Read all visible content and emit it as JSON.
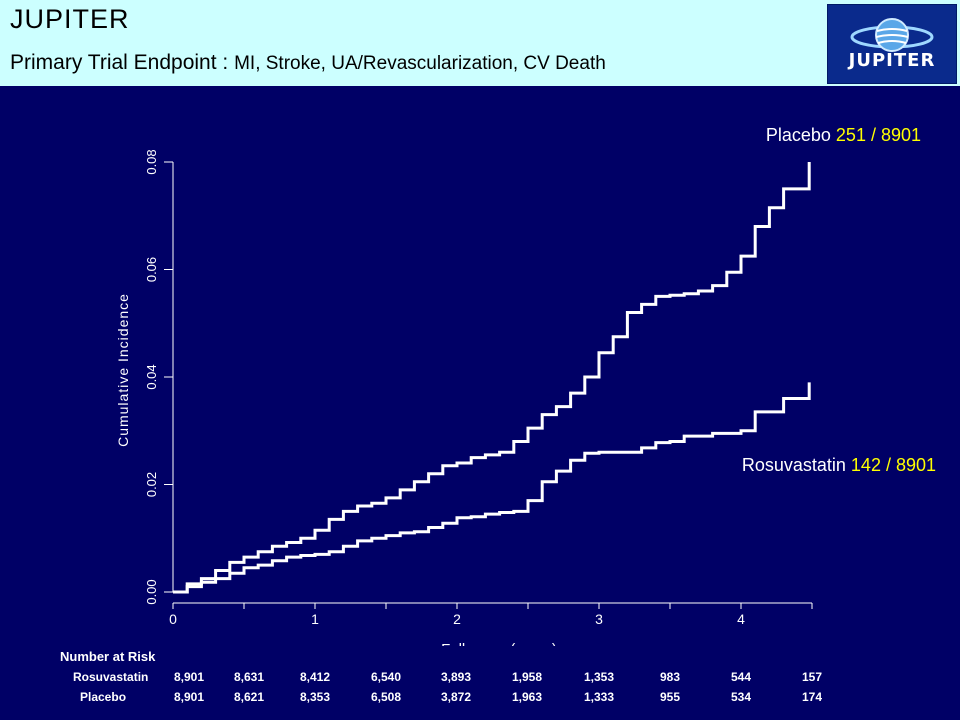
{
  "header": {
    "title": "JUPITER",
    "subtitle_prefix": "Primary Trial Endpoint : ",
    "subtitle_rest": "MI, Stroke, UA/Revascularization, CV Death",
    "logo_text": "JUPITER"
  },
  "colors": {
    "background": "#000066",
    "header_band": "#ccffff",
    "line": "#ffffff",
    "count_highlight": "#ffff00"
  },
  "chart_data": {
    "type": "line",
    "xlabel": "Follow-up (years)",
    "ylabel": "Cumulative Incidence",
    "xlim": [
      0,
      4.5
    ],
    "ylim": [
      0,
      0.08
    ],
    "xticks": [
      "0",
      "1",
      "2",
      "3",
      "4"
    ],
    "yticks": [
      "0.00",
      "0.02",
      "0.04",
      "0.06",
      "0.08"
    ],
    "grid": false,
    "series": [
      {
        "name": "Placebo",
        "count": "251 / 8901",
        "x": [
          0,
          0.1,
          0.2,
          0.3,
          0.4,
          0.5,
          0.6,
          0.7,
          0.8,
          0.9,
          1.0,
          1.1,
          1.2,
          1.3,
          1.4,
          1.5,
          1.6,
          1.7,
          1.8,
          1.9,
          2.0,
          2.1,
          2.2,
          2.3,
          2.4,
          2.5,
          2.6,
          2.7,
          2.8,
          2.9,
          3.0,
          3.1,
          3.2,
          3.3,
          3.4,
          3.5,
          3.6,
          3.7,
          3.8,
          3.9,
          4.0,
          4.1,
          4.2,
          4.3,
          4.4,
          4.48
        ],
        "y": [
          0,
          0.0015,
          0.0025,
          0.004,
          0.0055,
          0.0065,
          0.0075,
          0.0085,
          0.0092,
          0.01,
          0.0115,
          0.0135,
          0.015,
          0.016,
          0.0165,
          0.0175,
          0.019,
          0.0205,
          0.022,
          0.0235,
          0.024,
          0.025,
          0.0255,
          0.026,
          0.028,
          0.0305,
          0.033,
          0.0345,
          0.037,
          0.04,
          0.0445,
          0.0475,
          0.052,
          0.0535,
          0.055,
          0.0552,
          0.0555,
          0.056,
          0.057,
          0.0595,
          0.0625,
          0.068,
          0.0715,
          0.075,
          0.075,
          0.08
        ]
      },
      {
        "name": "Rosuvastatin",
        "count": "142 / 8901",
        "x": [
          0,
          0.1,
          0.2,
          0.3,
          0.4,
          0.5,
          0.6,
          0.7,
          0.8,
          0.9,
          1.0,
          1.1,
          1.2,
          1.3,
          1.4,
          1.5,
          1.6,
          1.7,
          1.8,
          1.9,
          2.0,
          2.1,
          2.2,
          2.3,
          2.4,
          2.5,
          2.6,
          2.7,
          2.8,
          2.9,
          3.0,
          3.1,
          3.2,
          3.3,
          3.4,
          3.5,
          3.6,
          3.7,
          3.8,
          3.9,
          4.0,
          4.1,
          4.2,
          4.3,
          4.48
        ],
        "y": [
          0,
          0.001,
          0.0018,
          0.0025,
          0.0035,
          0.0045,
          0.005,
          0.0058,
          0.0065,
          0.0068,
          0.007,
          0.0075,
          0.0085,
          0.0095,
          0.01,
          0.0105,
          0.011,
          0.0112,
          0.012,
          0.0128,
          0.0138,
          0.014,
          0.0145,
          0.0148,
          0.015,
          0.017,
          0.0205,
          0.0225,
          0.0245,
          0.0258,
          0.026,
          0.026,
          0.026,
          0.0268,
          0.0278,
          0.028,
          0.029,
          0.029,
          0.0295,
          0.0295,
          0.03,
          0.0335,
          0.0335,
          0.036,
          0.039
        ]
      }
    ]
  },
  "risk_table": {
    "title": "Number at Risk",
    "rows": [
      {
        "label": "Rosuvastatin",
        "values": [
          "8,901",
          "8,631",
          "8,412",
          "6,540",
          "3,893",
          "1,958",
          "1,353",
          "983",
          "544",
          "157"
        ]
      },
      {
        "label": "Placebo",
        "values": [
          "8,901",
          "8,621",
          "8,353",
          "6,508",
          "3,872",
          "1,963",
          "1,333",
          "955",
          "534",
          "174"
        ]
      }
    ]
  }
}
